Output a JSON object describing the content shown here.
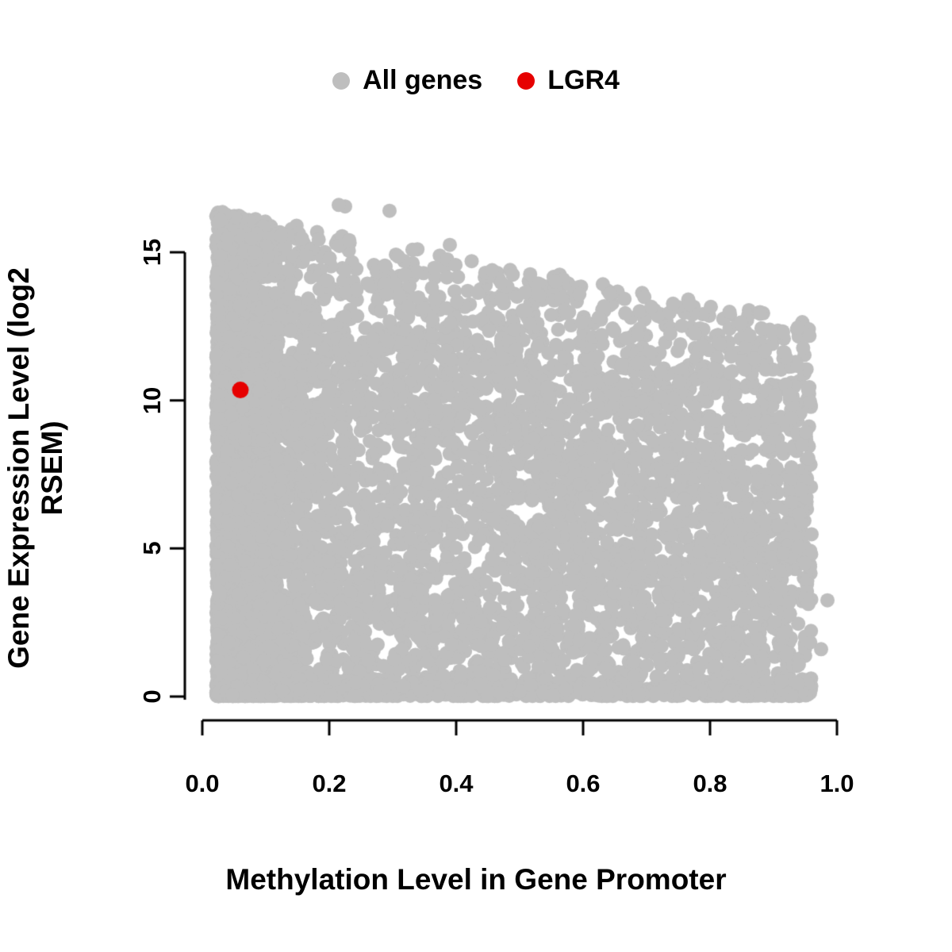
{
  "chart_data": {
    "type": "scatter",
    "title": "",
    "xlabel": "Methylation Level in Gene Promoter",
    "ylabel": "Gene Expression Level (log2 RSEM)",
    "xlim": [
      0.0,
      1.0
    ],
    "ylim": [
      0,
      16.8
    ],
    "grid": false,
    "x_ticks": {
      "values": [
        0,
        0.2,
        0.4,
        0.6,
        0.8,
        1.0
      ],
      "labels": [
        "0.0",
        "0.2",
        "0.4",
        "0.6",
        "0.8",
        "1.0"
      ]
    },
    "y_ticks": {
      "values": [
        0,
        5,
        10,
        15
      ],
      "labels": [
        "0",
        "5",
        "10",
        "15"
      ]
    },
    "legend": {
      "position": "top-center",
      "entries": [
        {
          "label": "All genes",
          "color": "#bebebe"
        },
        {
          "label": "LGR4",
          "color": "#e60000"
        }
      ]
    },
    "series": [
      {
        "name": "All genes",
        "color": "#bebebe",
        "style": "filled-circle",
        "n_points": 7500,
        "seed": 42,
        "x_range": [
          0.02,
          0.96
        ],
        "y_range": [
          0,
          16.7
        ],
        "upper_envelope": {
          "intercept": 16.5,
          "slope": -4.0
        },
        "extra_points": [
          [
            0.985,
            3.25
          ],
          [
            0.975,
            1.6
          ],
          [
            0.39,
            15.25
          ],
          [
            0.225,
            16.55
          ],
          [
            0.295,
            16.4
          ],
          [
            0.215,
            16.6
          ]
        ],
        "description": "Dense gray cloud of all genes; heaviest vertical band at promoter methylation < 0.15 spanning expression 0-16.5; maximum expression declines as methylation increases; dense band along y = 0 across all methylation levels"
      },
      {
        "name": "LGR4",
        "color": "#e60000",
        "style": "filled-circle",
        "points": [
          [
            0.06,
            10.35
          ]
        ]
      }
    ]
  },
  "colors": {
    "all_genes": "#bebebe",
    "lgr4": "#e60000",
    "axis": "#000000",
    "background": "#ffffff"
  }
}
